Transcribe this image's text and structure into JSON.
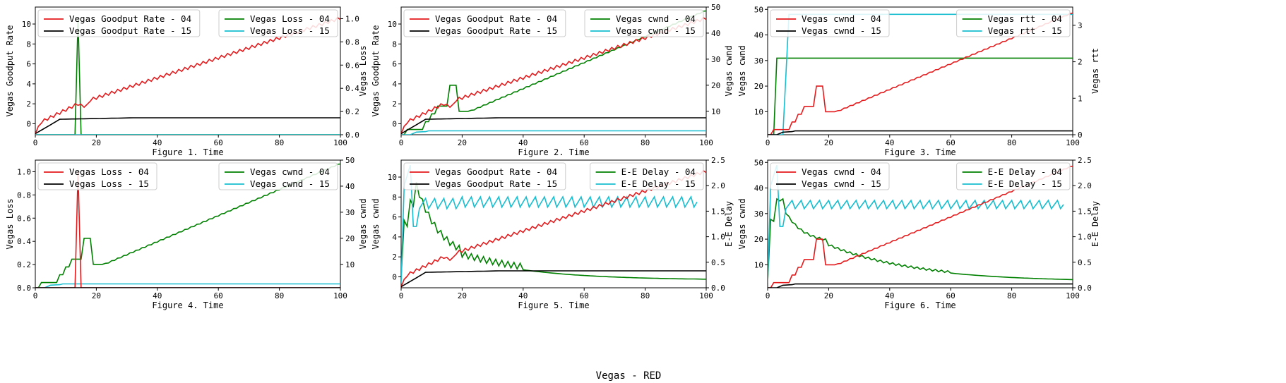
{
  "suptitle": "Vegas - RED",
  "colors": {
    "rate_04": "#e41a1c",
    "rate_15": "#000000",
    "r2_04": "#008000",
    "r2_15": "#17becf"
  },
  "chart_data": [
    {
      "id": "fig1",
      "type": "line",
      "xlabel": "Figure 1. Time",
      "xlim": [
        0,
        100
      ],
      "xticks": [
        0,
        20,
        40,
        60,
        80,
        100
      ],
      "left": {
        "ylabel": "Vegas Goodput Rate",
        "ylim": [
          -1.1,
          11.7
        ],
        "yticks": [
          0,
          2,
          4,
          6,
          8,
          10
        ],
        "series": [
          {
            "name": "Vegas Goodput Rate - 04",
            "color": "#e41a1c",
            "model": "rate04"
          },
          {
            "name": "Vegas Goodput Rate - 15",
            "color": "#000000",
            "model": "rate15"
          }
        ]
      },
      "right": {
        "ylabel": "Vegas Loss",
        "ylim": [
          0,
          1.1
        ],
        "yticks": [
          0.0,
          0.2,
          0.4,
          0.6,
          0.8,
          1.0
        ],
        "series": [
          {
            "name": "Vegas Loss - 04",
            "color": "#008000",
            "model": "loss04"
          },
          {
            "name": "Vegas Loss - 15",
            "color": "#17becf",
            "model": "loss15"
          }
        ]
      }
    },
    {
      "id": "fig2",
      "type": "line",
      "xlabel": "Figure 2. Time",
      "xlim": [
        0,
        100
      ],
      "xticks": [
        0,
        20,
        40,
        60,
        80,
        100
      ],
      "left": {
        "ylabel": "Vegas Goodput Rate",
        "ylim": [
          -1.1,
          11.7
        ],
        "yticks": [
          0,
          2,
          4,
          6,
          8,
          10
        ],
        "series": [
          {
            "name": "Vegas Goodput Rate - 04",
            "color": "#e41a1c",
            "model": "rate04"
          },
          {
            "name": "Vegas Goodput Rate - 15",
            "color": "#000000",
            "model": "rate15"
          }
        ]
      },
      "right": {
        "ylabel": "Vegas cwnd",
        "ylim": [
          1,
          50
        ],
        "yticks": [
          10,
          20,
          30,
          40,
          50
        ],
        "series": [
          {
            "name": "Vegas cwnd - 04",
            "color": "#008000",
            "model": "cwnd04"
          },
          {
            "name": "Vegas cwnd - 15",
            "color": "#17becf",
            "model": "cwnd15"
          }
        ]
      }
    },
    {
      "id": "fig3",
      "type": "line",
      "xlabel": "Figure 3. Time",
      "xlim": [
        0,
        100
      ],
      "xticks": [
        0,
        20,
        40,
        60,
        80,
        100
      ],
      "left": {
        "ylabel": "Vegas cwnd",
        "ylim": [
          1,
          50.9
        ],
        "yticks": [
          10,
          20,
          30,
          40,
          50
        ],
        "series": [
          {
            "name": "Vegas cwnd - 04",
            "color": "#e41a1c",
            "model": "cwnd04"
          },
          {
            "name": "Vegas cwnd - 15",
            "color": "#000000",
            "model": "cwnd15"
          }
        ]
      },
      "right": {
        "ylabel": "Vegas rtt",
        "ylim": [
          0,
          3.5
        ],
        "yticks": [
          0,
          1,
          2,
          3
        ],
        "series": [
          {
            "name": "Vegas rtt - 04",
            "color": "#008000",
            "model": "rtt04"
          },
          {
            "name": "Vegas rtt - 15",
            "color": "#17becf",
            "model": "rtt15"
          }
        ]
      }
    },
    {
      "id": "fig4",
      "type": "line",
      "xlabel": "Figure 4. Time",
      "xlim": [
        0,
        100
      ],
      "xticks": [
        0,
        20,
        40,
        60,
        80,
        100
      ],
      "left": {
        "ylabel": "Vegas Loss",
        "ylim": [
          0,
          1.1
        ],
        "yticks": [
          0.0,
          0.2,
          0.4,
          0.6,
          0.8,
          1.0
        ],
        "series": [
          {
            "name": "Vegas Loss - 04",
            "color": "#e41a1c",
            "model": "loss04"
          },
          {
            "name": "Vegas Loss - 15",
            "color": "#000000",
            "model": "loss15"
          }
        ]
      },
      "right": {
        "ylabel": "Vegas cwnd",
        "ylim": [
          1,
          50
        ],
        "yticks": [
          10,
          20,
          30,
          40,
          50
        ],
        "series": [
          {
            "name": "Vegas cwnd - 04",
            "color": "#008000",
            "model": "cwnd04"
          },
          {
            "name": "Vegas cwnd - 15",
            "color": "#17becf",
            "model": "cwnd15"
          }
        ]
      }
    },
    {
      "id": "fig5",
      "type": "line",
      "xlabel": "Figure 5. Time",
      "xlim": [
        0,
        100
      ],
      "xticks": [
        0,
        20,
        40,
        60,
        80,
        100
      ],
      "left": {
        "ylabel": "Vegas cwnd",
        "ylim": [
          -1.1,
          11.7
        ],
        "yticks": [
          0,
          2,
          4,
          6,
          8,
          10
        ],
        "series": [
          {
            "name": "Vegas Goodput Rate - 04",
            "color": "#e41a1c",
            "model": "rate04"
          },
          {
            "name": "Vegas Goodput Rate - 15",
            "color": "#000000",
            "model": "rate15"
          }
        ]
      },
      "right": {
        "ylabel": "E-E Delay",
        "ylim": [
          0,
          2.5
        ],
        "yticks": [
          0.0,
          0.5,
          1.0,
          1.5,
          2.0,
          2.5
        ],
        "series": [
          {
            "name": "E-E Delay - 04",
            "color": "#008000",
            "model": "delay04"
          },
          {
            "name": "E-E Delay - 15",
            "color": "#17becf",
            "model": "delay15"
          }
        ]
      }
    },
    {
      "id": "fig6",
      "type": "line",
      "xlabel": "Figure 6. Time",
      "xlim": [
        0,
        100
      ],
      "xticks": [
        0,
        20,
        40,
        60,
        80,
        100
      ],
      "left": {
        "ylabel": "Vegas cwnd",
        "ylim": [
          1,
          50.9
        ],
        "yticks": [
          10,
          20,
          30,
          40,
          50
        ],
        "series": [
          {
            "name": "Vegas cwnd - 04",
            "color": "#e41a1c",
            "model": "cwnd04"
          },
          {
            "name": "Vegas cwnd - 15",
            "color": "#000000",
            "model": "cwnd15"
          }
        ]
      },
      "right": {
        "ylabel": "E-E Delay",
        "ylim": [
          0,
          2.5
        ],
        "yticks": [
          0.0,
          0.5,
          1.0,
          1.5,
          2.0,
          2.5
        ],
        "series": [
          {
            "name": "E-E Delay - 04",
            "color": "#008000",
            "model": "delay06"
          },
          {
            "name": "E-E Delay - 15",
            "color": "#17becf",
            "model": "delay15b"
          }
        ]
      }
    }
  ]
}
